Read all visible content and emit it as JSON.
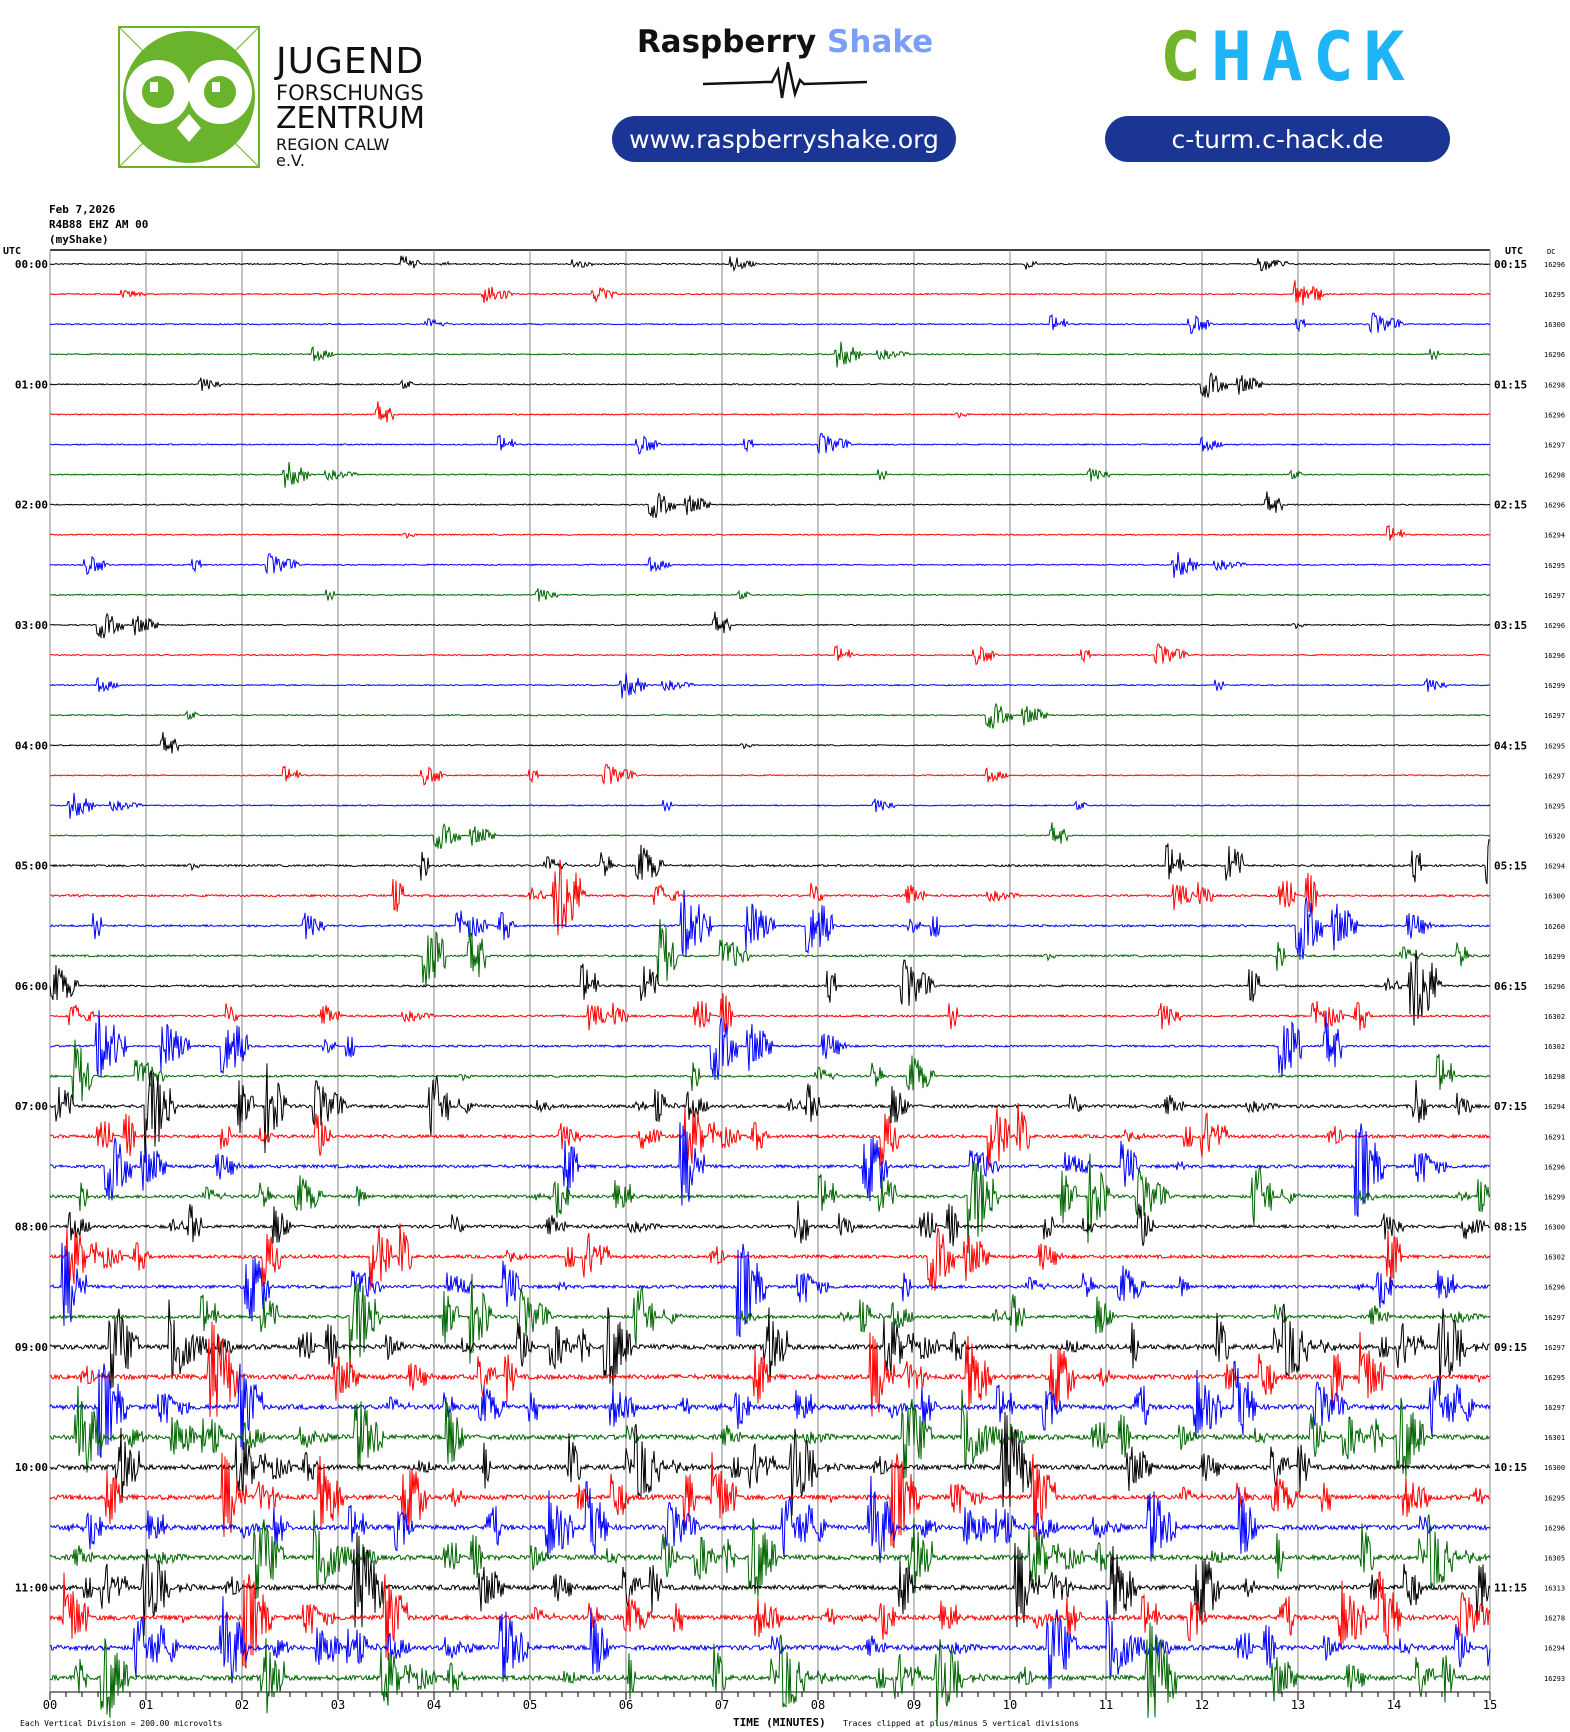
{
  "logos": {
    "jfz": {
      "line1": "JUGEND",
      "line2": "FORSCHUNGS",
      "line3": "ZENTRUM",
      "line4": "REGION CALW e.V.",
      "color": "#6ab42d"
    },
    "raspberry_shake": {
      "word1": "Raspberry",
      "word2": "Shake",
      "url": "www.raspberryshake.org",
      "accent": "#7b9ef7"
    },
    "chack": {
      "c": "C",
      "rest": "HACK",
      "url": "c-turm.c-hack.de",
      "green": "#72b52a",
      "blue": "#1fb3f7"
    },
    "pill_color": "#1b3594"
  },
  "header": {
    "date": "Feb 7,2026",
    "station": "R4B88 EHZ AM 00",
    "name": "(myShake)"
  },
  "chart_data": {
    "type": "line",
    "subtype": "helicorder",
    "trace_colors": [
      "#000000",
      "#ff0000",
      "#0000ff",
      "#006600"
    ],
    "left_axis_title": "UTC",
    "right_axis_title": "UTC",
    "dc_title": "DC",
    "left_labels": [
      "00:00",
      "01:00",
      "02:00",
      "03:00",
      "04:00",
      "05:00",
      "06:00",
      "07:00",
      "08:00",
      "09:00",
      "10:00",
      "11:00"
    ],
    "right_labels": [
      "00:15",
      "01:15",
      "02:15",
      "03:15",
      "04:15",
      "05:15",
      "06:15",
      "07:15",
      "08:15",
      "09:15",
      "10:15",
      "11:15"
    ],
    "dc_values": [
      16296,
      16295,
      16300,
      16296,
      16298,
      16296,
      16297,
      16298,
      16296,
      16294,
      16295,
      16297,
      16296,
      16296,
      16299,
      16297,
      16295,
      16297,
      16295,
      16320,
      16294,
      16300,
      16260,
      16299,
      16296,
      16302,
      16302,
      16298,
      16294,
      16291,
      16296,
      16299,
      16300,
      16302,
      16296,
      16297,
      16297,
      16295,
      16297,
      16301,
      16300,
      16295,
      16296,
      16305,
      16313,
      16278,
      16294,
      16293
    ],
    "x_ticks": [
      "00",
      "01",
      "02",
      "03",
      "04",
      "05",
      "06",
      "07",
      "08",
      "09",
      "10",
      "11",
      "12",
      "13",
      "14",
      "15"
    ],
    "xlabel": "TIME (MINUTES)",
    "xlim": [
      0,
      15
    ],
    "grid": true,
    "scale_note": "Each Vertical Division =  200.00 microvolts",
    "clip_note": "Traces clipped at plus/minus 5 vertical divisions"
  }
}
